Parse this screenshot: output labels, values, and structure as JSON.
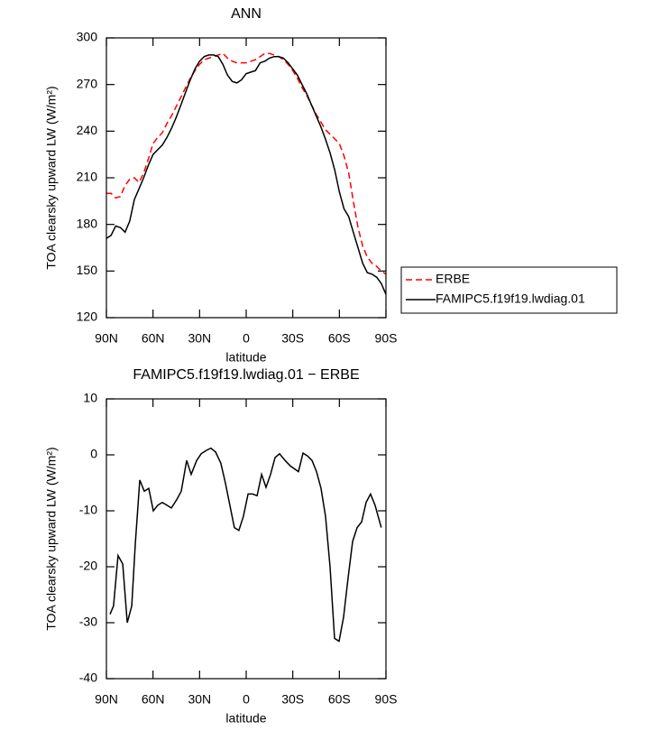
{
  "chart_data": [
    {
      "type": "line",
      "title": "ANN",
      "xlabel": "latitude",
      "ylabel": "TOA clearsky upward LW (W/m²)",
      "x": [
        90,
        87,
        84,
        81,
        78,
        75,
        72,
        69,
        66,
        63,
        60,
        57,
        54,
        51,
        48,
        45,
        42,
        39,
        36,
        33,
        30,
        27,
        24,
        21,
        18,
        15,
        12,
        9,
        6,
        3,
        0,
        -3,
        -6,
        -9,
        -12,
        -15,
        -18,
        -21,
        -24,
        -27,
        -30,
        -33,
        -36,
        -39,
        -42,
        -45,
        -48,
        -51,
        -54,
        -57,
        -60,
        -63,
        -66,
        -69,
        -72,
        -75,
        -78,
        -81,
        -84,
        -87,
        -90
      ],
      "series": [
        {
          "name": "ERBE",
          "color": "#ff0000",
          "dashed": true,
          "values": [
            200,
            200,
            197,
            198,
            205,
            209,
            210,
            207,
            213,
            222,
            232,
            236,
            239,
            245,
            250,
            256,
            262,
            268,
            274,
            279,
            283,
            286,
            287,
            288,
            289,
            290,
            287,
            285,
            284,
            284,
            284,
            285,
            286,
            288,
            290,
            290,
            289,
            288,
            286,
            283,
            279,
            274,
            268,
            263,
            257,
            251,
            246,
            241,
            238,
            235,
            232,
            224,
            213,
            195,
            178,
            166,
            159,
            155,
            153,
            150,
            148
          ]
        },
        {
          "name": "FAMIPC5.f19f19.lwdiag.01",
          "color": "#000000",
          "dashed": false,
          "values": [
            171,
            173,
            179,
            178,
            175,
            182,
            196,
            203,
            210,
            218,
            225,
            228,
            231,
            236,
            242,
            249,
            257,
            265,
            273,
            280,
            285,
            288,
            289,
            289,
            288,
            283,
            276,
            272,
            271,
            273,
            277,
            278,
            279,
            284,
            285,
            287,
            288,
            288,
            287,
            284,
            280,
            276,
            270,
            264,
            257,
            250,
            243,
            235,
            226,
            215,
            201,
            190,
            185,
            175,
            165,
            155,
            149,
            148,
            146,
            142,
            135
          ]
        }
      ],
      "xlim": [
        90,
        -90
      ],
      "xticks": [
        {
          "value": 90,
          "label": "90N"
        },
        {
          "value": 60,
          "label": "60N"
        },
        {
          "value": 30,
          "label": "30N"
        },
        0,
        {
          "value": -30,
          "label": "30S"
        },
        {
          "value": -60,
          "label": "60S"
        },
        {
          "value": -90,
          "label": "90S"
        }
      ],
      "ylim": [
        120,
        300
      ],
      "yticks": [
        120,
        150,
        180,
        210,
        240,
        270,
        300
      ]
    },
    {
      "type": "line",
      "title": "FAMIPC5.f19f19.lwdiag.01 − ERBE",
      "xlabel": "latitude",
      "ylabel": "TOA clearsky upward LW (W/m²)",
      "x": [
        87.7,
        85.4,
        82.5,
        79.5,
        76.6,
        73.7,
        71.4,
        68.5,
        65.6,
        62.7,
        59.8,
        56.9,
        54,
        51.1,
        48.2,
        44.7,
        41.8,
        38.3,
        35.4,
        31.9,
        29,
        25.6,
        22.7,
        19.7,
        16.3,
        13.4,
        10.5,
        7.6,
        4.7,
        1.8,
        -1.2,
        -4.1,
        -7,
        -9.9,
        -12.8,
        -15.7,
        -18.6,
        -21.5,
        -25,
        -28.5,
        -33.7,
        -36.6,
        -39.5,
        -42.4,
        -45.3,
        -48.2,
        -51.1,
        -54,
        -56.9,
        -59.8,
        -62.7,
        -65.6,
        -68.5,
        -71.4,
        -74.3,
        -77.2,
        -80.1,
        -83,
        -87
      ],
      "series": [
        {
          "color": "#000000",
          "dashed": false,
          "values": [
            -28.5,
            -27,
            -18,
            -19.5,
            -30,
            -27,
            -16,
            -4.5,
            -6.5,
            -6,
            -10,
            -9,
            -8.5,
            -9,
            -9.5,
            -8,
            -6.5,
            -1,
            -3.5,
            -1,
            0.2,
            0.8,
            1.2,
            0.5,
            -1.5,
            -5,
            -9,
            -13,
            -13.5,
            -11,
            -7,
            -7,
            -7.3,
            -3.5,
            -5.8,
            -3.5,
            -0.5,
            0.2,
            -1,
            -2,
            -3,
            0.3,
            -0.2,
            -1,
            -3,
            -6,
            -11,
            -20,
            -32.8,
            -33.3,
            -29,
            -22,
            -15.5,
            -13,
            -12,
            -8.5,
            -7,
            -9,
            -13
          ]
        }
      ],
      "xlim": [
        90,
        -90
      ],
      "xticks": [
        {
          "value": 90,
          "label": "90N"
        },
        {
          "value": 60,
          "label": "60N"
        },
        {
          "value": 30,
          "label": "30N"
        },
        0,
        {
          "value": -30,
          "label": "30S"
        },
        {
          "value": -60,
          "label": "60S"
        },
        {
          "value": -90,
          "label": "90S"
        }
      ],
      "ylim": [
        -40,
        10
      ],
      "yticks": [
        -40,
        -30,
        -20,
        -10,
        0,
        10
      ]
    }
  ]
}
